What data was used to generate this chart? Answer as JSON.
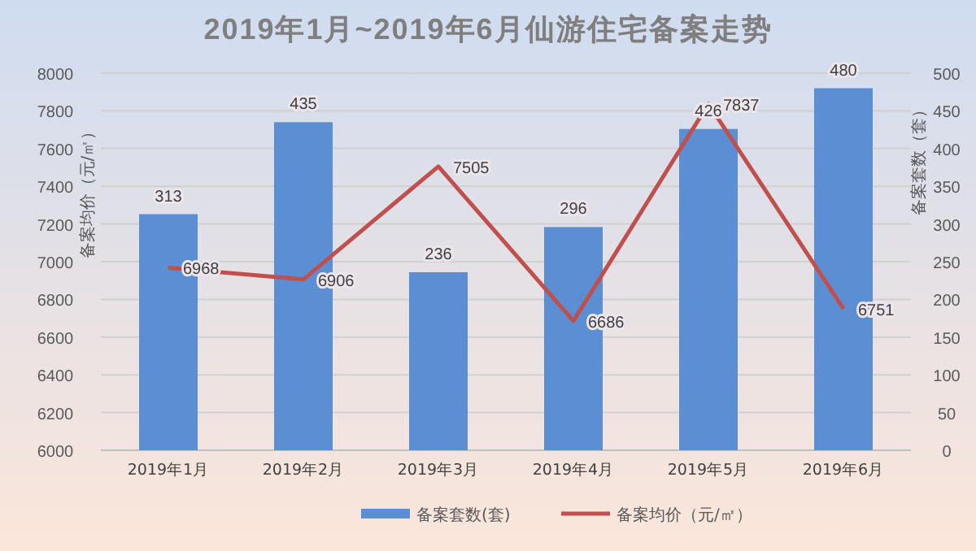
{
  "chart_data": {
    "type": "bar",
    "title": "2019年1月~2019年6月仙游住宅备案走势",
    "ylabel": "备案均价（元/㎡）",
    "y2label": "备案套数（套）",
    "categories": [
      "2019年1月",
      "2019年2月",
      "2019年3月",
      "2019年4月",
      "2019年5月",
      "2019年6月"
    ],
    "series": [
      {
        "name": "备案套数(套)",
        "axis": "y2",
        "color": "#5b8ed3",
        "values": [
          313,
          435,
          236,
          296,
          426,
          480
        ]
      },
      {
        "name": "备案均价（元/㎡）",
        "type": "line",
        "axis": "y",
        "color": "#c0504d",
        "values": [
          6968,
          6906,
          7505,
          6686,
          7837,
          6751
        ]
      }
    ],
    "ylim": [
      6000,
      8000
    ],
    "yticks": [
      6000,
      6200,
      6400,
      6600,
      6800,
      7000,
      7200,
      7400,
      7600,
      7800,
      8000
    ],
    "y2lim": [
      0,
      500
    ],
    "y2ticks": [
      0,
      50,
      100,
      150,
      200,
      250,
      300,
      350,
      400,
      450,
      500
    ],
    "grid": "y",
    "legend": "bottom",
    "data_labels": true,
    "marker": "none",
    "line_style": "solid"
  }
}
